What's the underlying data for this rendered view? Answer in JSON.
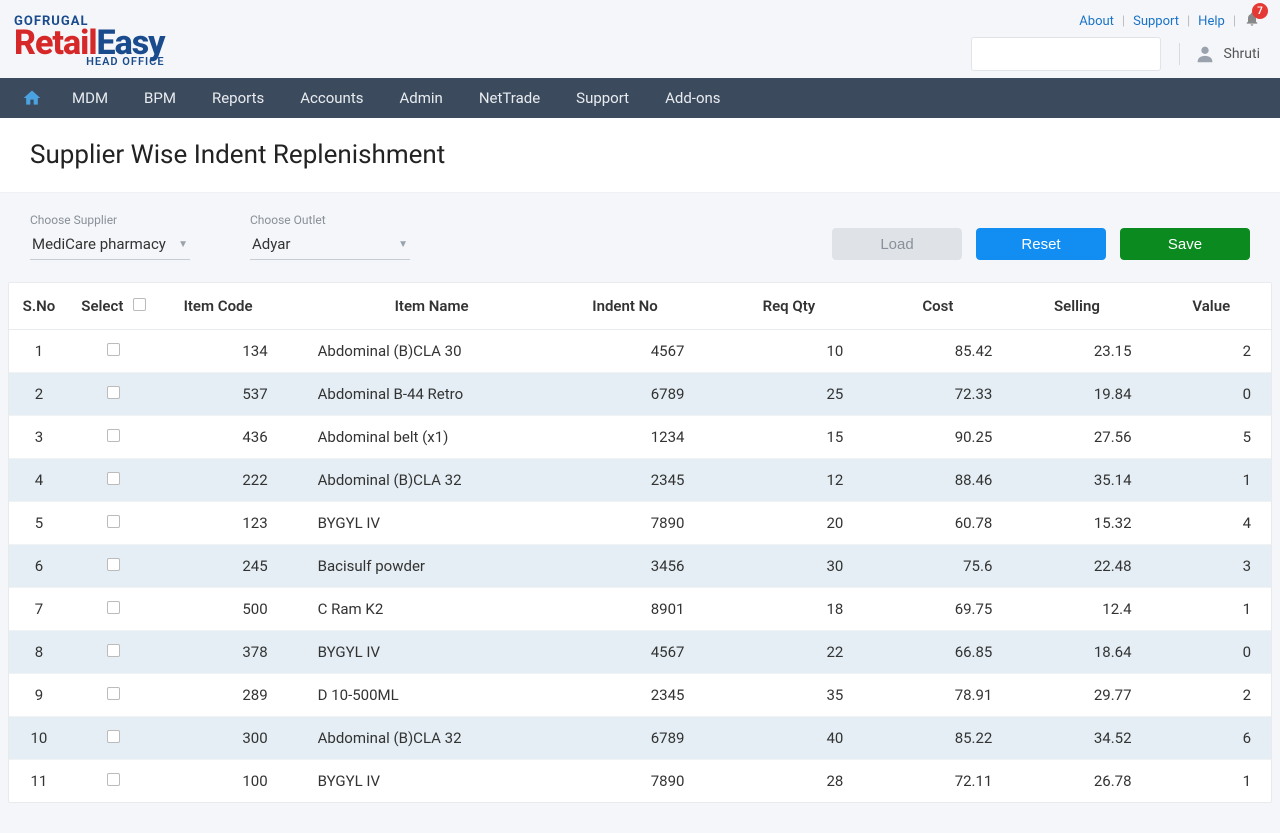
{
  "brand": {
    "top": "GOFRUGAL",
    "mid_red": "Retail",
    "mid_blue": "Easy",
    "sub": "HEAD OFFICE"
  },
  "topLinks": {
    "about": "About",
    "support": "Support",
    "help": "Help",
    "badge": "7"
  },
  "user": {
    "name": "Shruti"
  },
  "nav": {
    "items": [
      "MDM",
      "BPM",
      "Reports",
      "Accounts",
      "Admin",
      "NetTrade",
      "Support",
      "Add-ons"
    ]
  },
  "page": {
    "title": "Supplier Wise Indent Replenishment"
  },
  "filters": {
    "supplier_label": "Choose Supplier",
    "supplier_value": "MediCare pharmacy",
    "outlet_label": "Choose Outlet",
    "outlet_value": "Adyar"
  },
  "buttons": {
    "load": "Load",
    "reset": "Reset",
    "save": "Save"
  },
  "table": {
    "headers": {
      "sno": "S.No",
      "select": "Select",
      "itemcode": "Item Code",
      "itemname": "Item Name",
      "indent": "Indent No",
      "reqqty": "Req Qty",
      "cost": "Cost",
      "selling": "Selling",
      "value": "Value"
    },
    "rows": [
      {
        "sno": "1",
        "itemcode": "134",
        "itemname": "Abdominal (B)CLA 30",
        "indent": "4567",
        "reqqty": "10",
        "cost": "85.42",
        "selling": "23.15",
        "value": "2"
      },
      {
        "sno": "2",
        "itemcode": "537",
        "itemname": "Abdominal B-44 Retro",
        "indent": "6789",
        "reqqty": "25",
        "cost": "72.33",
        "selling": "19.84",
        "value": "0"
      },
      {
        "sno": "3",
        "itemcode": "436",
        "itemname": "Abdominal belt (x1)",
        "indent": "1234",
        "reqqty": "15",
        "cost": "90.25",
        "selling": "27.56",
        "value": "5"
      },
      {
        "sno": "4",
        "itemcode": "222",
        "itemname": "Abdominal (B)CLA 32",
        "indent": "2345",
        "reqqty": "12",
        "cost": "88.46",
        "selling": "35.14",
        "value": "1"
      },
      {
        "sno": "5",
        "itemcode": "123",
        "itemname": "BYGYL IV",
        "indent": "7890",
        "reqqty": "20",
        "cost": "60.78",
        "selling": "15.32",
        "value": "4"
      },
      {
        "sno": "6",
        "itemcode": "245",
        "itemname": "Bacisulf powder",
        "indent": "3456",
        "reqqty": "30",
        "cost": "75.6",
        "selling": "22.48",
        "value": "3"
      },
      {
        "sno": "7",
        "itemcode": "500",
        "itemname": "C Ram K2",
        "indent": "8901",
        "reqqty": "18",
        "cost": "69.75",
        "selling": "12.4",
        "value": "1"
      },
      {
        "sno": "8",
        "itemcode": "378",
        "itemname": "BYGYL IV",
        "indent": "4567",
        "reqqty": "22",
        "cost": "66.85",
        "selling": "18.64",
        "value": "0"
      },
      {
        "sno": "9",
        "itemcode": "289",
        "itemname": "D 10-500ML",
        "indent": "2345",
        "reqqty": "35",
        "cost": "78.91",
        "selling": "29.77",
        "value": "2"
      },
      {
        "sno": "10",
        "itemcode": "300",
        "itemname": "Abdominal (B)CLA 32",
        "indent": "6789",
        "reqqty": "40",
        "cost": "85.22",
        "selling": "34.52",
        "value": "6"
      },
      {
        "sno": "11",
        "itemcode": "100",
        "itemname": "BYGYL IV",
        "indent": "7890",
        "reqqty": "28",
        "cost": "72.11",
        "selling": "26.78",
        "value": "1"
      }
    ]
  },
  "colors": {
    "navbar": "#3b4a5c",
    "accent_blue": "#128df2",
    "accent_green": "#0a8a1f",
    "row_alt": "#e4eef4",
    "badge": "#e53935",
    "logo_red": "#d62828",
    "logo_blue": "#1a4b8c"
  }
}
